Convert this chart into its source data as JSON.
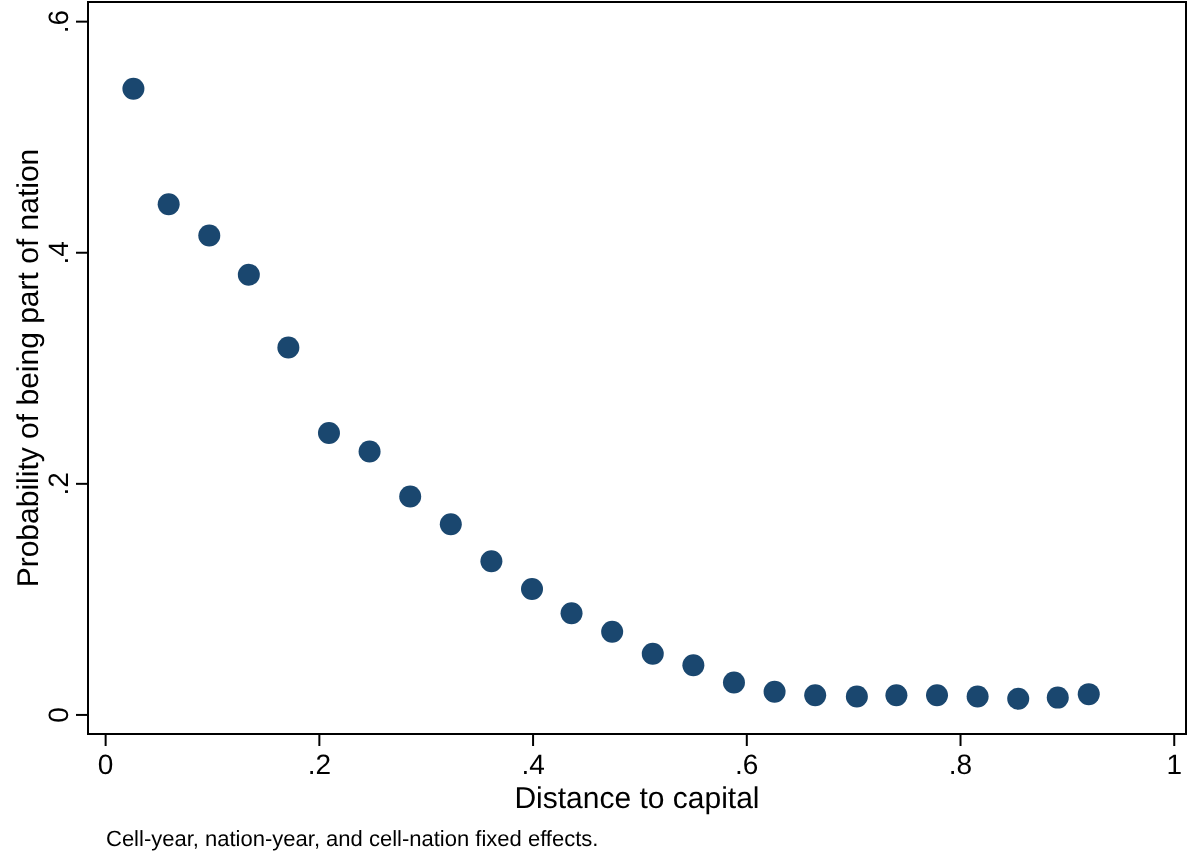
{
  "chart_data": {
    "type": "scatter",
    "xlabel": "Distance to capital",
    "ylabel": "Probability of being part of nation",
    "annotations": [
      "Cell-year, nation-year, and cell-nation fixed effects."
    ],
    "x": [
      0.026,
      0.059,
      0.097,
      0.134,
      0.171,
      0.209,
      0.247,
      0.285,
      0.323,
      0.361,
      0.399,
      0.436,
      0.474,
      0.512,
      0.55,
      0.588,
      0.626,
      0.664,
      0.703,
      0.74,
      0.778,
      0.816,
      0.854,
      0.891,
      0.92
    ],
    "series": [
      {
        "color": "#1a476f",
        "values": [
          0.542,
          0.442,
          0.415,
          0.381,
          0.318,
          0.244,
          0.228,
          0.189,
          0.165,
          0.133,
          0.109,
          0.088,
          0.072,
          0.053,
          0.043,
          0.028,
          0.02,
          0.017,
          0.016,
          0.017,
          0.017,
          0.016,
          0.014,
          0.015,
          0.018
        ]
      }
    ],
    "xlim": [
      -0.0165,
      1.011
    ],
    "ylim": [
      -0.0165,
      0.617
    ],
    "xticks": [
      {
        "value": 0,
        "label": "0"
      },
      {
        "value": 0.2,
        "label": ".2"
      },
      {
        "value": 0.4,
        "label": ".4"
      },
      {
        "value": 0.6,
        "label": ".6"
      },
      {
        "value": 0.8,
        "label": ".8"
      },
      {
        "value": 1,
        "label": "1"
      }
    ],
    "yticks": [
      {
        "value": 0,
        "label": "0"
      },
      {
        "value": 0.2,
        "label": ".2"
      },
      {
        "value": 0.4,
        "label": ".4"
      },
      {
        "value": 0.6,
        "label": ".6"
      }
    ],
    "grid": false,
    "marker": "circle"
  }
}
